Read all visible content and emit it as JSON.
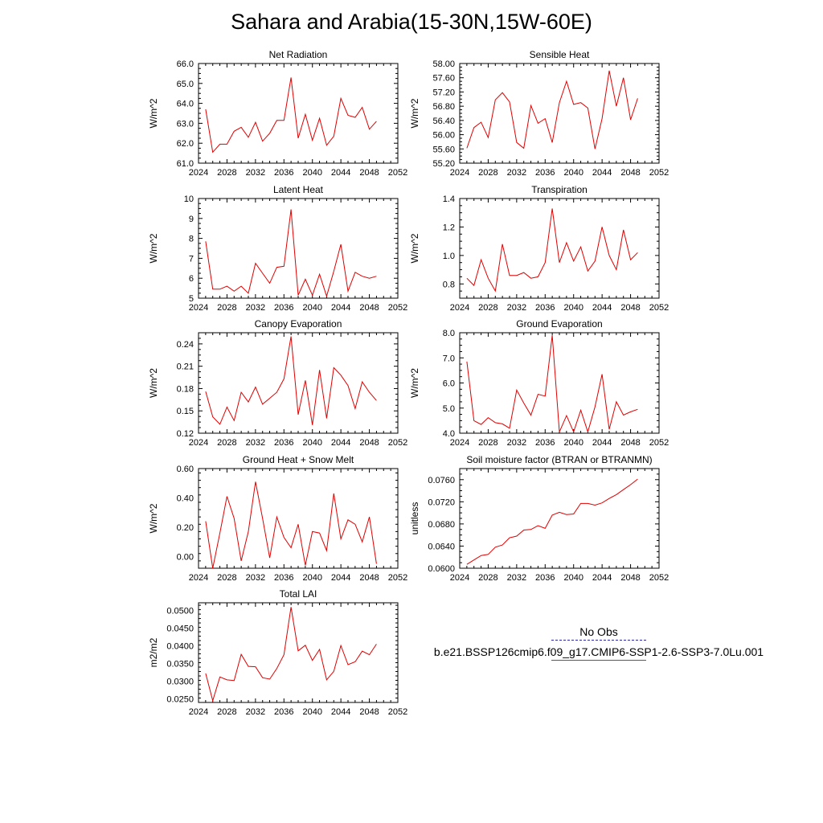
{
  "title": "Sahara and Arabia(15-30N,15W-60E)",
  "colors": {
    "model_line": "#e00000",
    "obs_line": "#2a2aa8"
  },
  "legend": {
    "obs_label": "No Obs",
    "model_label": "b.e21.BSSP126cmip6.f09_g17.CMIP6-SSP1-2.6-SSP3-7.0Lu.001"
  },
  "chart_data": [
    {
      "type": "line",
      "title": "Net Radiation",
      "ylabel": "W/m^2",
      "xlim": [
        2024,
        2052
      ],
      "ylim": [
        61.0,
        66.0
      ],
      "xticks": [
        2024,
        2028,
        2032,
        2036,
        2040,
        2044,
        2048,
        2052
      ],
      "yticks": [
        "61.0",
        "62.0",
        "63.0",
        "64.0",
        "65.0",
        "66.0"
      ],
      "x": [
        2025,
        2026,
        2027,
        2028,
        2029,
        2030,
        2031,
        2032,
        2033,
        2034,
        2035,
        2036,
        2037,
        2038,
        2039,
        2040,
        2041,
        2042,
        2043,
        2044,
        2045,
        2046,
        2047,
        2048,
        2049
      ],
      "series": [
        {
          "values": [
            63.7,
            61.55,
            61.95,
            61.95,
            62.6,
            62.8,
            62.3,
            63.05,
            62.1,
            62.5,
            63.15,
            63.15,
            65.3,
            62.25,
            63.45,
            62.15,
            63.25,
            61.9,
            62.35,
            64.25,
            63.4,
            63.3,
            63.8,
            62.7,
            63.1
          ]
        }
      ]
    },
    {
      "type": "line",
      "title": "Sensible Heat",
      "ylabel": "W/m^2",
      "xlim": [
        2024,
        2052
      ],
      "ylim": [
        55.2,
        58.0
      ],
      "xticks": [
        2024,
        2028,
        2032,
        2036,
        2040,
        2044,
        2048,
        2052
      ],
      "yticks": [
        "55.20",
        "55.60",
        "56.00",
        "56.40",
        "56.80",
        "57.20",
        "57.60",
        "58.00"
      ],
      "x": [
        2025,
        2026,
        2027,
        2028,
        2029,
        2030,
        2031,
        2032,
        2033,
        2034,
        2035,
        2036,
        2037,
        2038,
        2039,
        2040,
        2041,
        2042,
        2043,
        2044,
        2045,
        2046,
        2047,
        2048,
        2049
      ],
      "series": [
        {
          "values": [
            55.62,
            56.2,
            56.35,
            55.92,
            56.98,
            57.18,
            56.92,
            55.78,
            55.62,
            56.82,
            56.32,
            56.45,
            55.78,
            56.9,
            57.5,
            56.85,
            56.9,
            56.75,
            55.6,
            56.45,
            57.8,
            56.8,
            57.6,
            56.42,
            57.02
          ]
        }
      ]
    },
    {
      "type": "line",
      "title": "Latent Heat",
      "ylabel": "W/m^2",
      "xlim": [
        2024,
        2052
      ],
      "ylim": [
        5,
        10
      ],
      "xticks": [
        2024,
        2028,
        2032,
        2036,
        2040,
        2044,
        2048,
        2052
      ],
      "yticks": [
        "5",
        "6",
        "7",
        "8",
        "9",
        "10"
      ],
      "x": [
        2025,
        2026,
        2027,
        2028,
        2029,
        2030,
        2031,
        2032,
        2033,
        2034,
        2035,
        2036,
        2037,
        2038,
        2039,
        2040,
        2041,
        2042,
        2043,
        2044,
        2045,
        2046,
        2047,
        2048,
        2049
      ],
      "series": [
        {
          "values": [
            7.85,
            5.45,
            5.45,
            5.6,
            5.35,
            5.6,
            5.25,
            6.75,
            6.25,
            5.75,
            6.55,
            6.6,
            9.45,
            5.15,
            5.95,
            5.15,
            6.2,
            5.1,
            6.35,
            7.7,
            5.35,
            6.3,
            6.1,
            6.0,
            6.1
          ]
        }
      ]
    },
    {
      "type": "line",
      "title": "Transpiration",
      "ylabel": "W/m^2",
      "xlim": [
        2024,
        2052
      ],
      "ylim": [
        0.7,
        1.4
      ],
      "xticks": [
        2024,
        2028,
        2032,
        2036,
        2040,
        2044,
        2048,
        2052
      ],
      "yticks": [
        "0.8",
        "1.0",
        "1.2",
        "1.4"
      ],
      "x": [
        2025,
        2026,
        2027,
        2028,
        2029,
        2030,
        2031,
        2032,
        2033,
        2034,
        2035,
        2036,
        2037,
        2038,
        2039,
        2040,
        2041,
        2042,
        2043,
        2044,
        2045,
        2046,
        2047,
        2048,
        2049
      ],
      "series": [
        {
          "values": [
            0.84,
            0.79,
            0.97,
            0.84,
            0.75,
            1.08,
            0.86,
            0.86,
            0.88,
            0.84,
            0.85,
            0.95,
            1.33,
            0.95,
            1.09,
            0.96,
            1.06,
            0.89,
            0.96,
            1.2,
            1.0,
            0.9,
            1.18,
            0.97,
            1.02
          ]
        }
      ]
    },
    {
      "type": "line",
      "title": "Canopy Evaporation",
      "ylabel": "W/m^2",
      "xlim": [
        2024,
        2052
      ],
      "ylim": [
        0.12,
        0.255
      ],
      "xticks": [
        2024,
        2028,
        2032,
        2036,
        2040,
        2044,
        2048,
        2052
      ],
      "yticks": [
        "0.12",
        "0.15",
        "0.18",
        "0.21",
        "0.24"
      ],
      "x": [
        2025,
        2026,
        2027,
        2028,
        2029,
        2030,
        2031,
        2032,
        2033,
        2034,
        2035,
        2036,
        2037,
        2038,
        2039,
        2040,
        2041,
        2042,
        2043,
        2044,
        2045,
        2046,
        2047,
        2048,
        2049
      ],
      "series": [
        {
          "values": [
            0.176,
            0.142,
            0.132,
            0.155,
            0.137,
            0.175,
            0.162,
            0.182,
            0.159,
            0.167,
            0.175,
            0.193,
            0.25,
            0.145,
            0.191,
            0.131,
            0.205,
            0.14,
            0.208,
            0.198,
            0.184,
            0.153,
            0.189,
            0.175,
            0.164
          ]
        }
      ]
    },
    {
      "type": "line",
      "title": "Ground Evaporation",
      "ylabel": "W/m^2",
      "xlim": [
        2024,
        2052
      ],
      "ylim": [
        4.0,
        8.0
      ],
      "xticks": [
        2024,
        2028,
        2032,
        2036,
        2040,
        2044,
        2048,
        2052
      ],
      "yticks": [
        "4.0",
        "5.0",
        "6.0",
        "7.0",
        "8.0"
      ],
      "x": [
        2025,
        2026,
        2027,
        2028,
        2029,
        2030,
        2031,
        2032,
        2033,
        2034,
        2035,
        2036,
        2037,
        2038,
        2039,
        2040,
        2041,
        2042,
        2043,
        2044,
        2045,
        2046,
        2047,
        2048,
        2049
      ],
      "series": [
        {
          "values": [
            6.85,
            4.5,
            4.35,
            4.62,
            4.42,
            4.37,
            4.2,
            5.72,
            5.2,
            4.72,
            5.55,
            5.48,
            7.9,
            4.05,
            4.7,
            4.05,
            4.92,
            4.05,
            5.05,
            6.35,
            4.15,
            5.25,
            4.72,
            4.85,
            4.95
          ]
        }
      ]
    },
    {
      "type": "line",
      "title": "Ground Heat + Snow Melt",
      "ylabel": "W/m^2",
      "xlim": [
        2024,
        2052
      ],
      "ylim": [
        -0.08,
        0.6
      ],
      "xticks": [
        2024,
        2028,
        2032,
        2036,
        2040,
        2044,
        2048,
        2052
      ],
      "yticks": [
        "0.00",
        "0.20",
        "0.40",
        "0.60"
      ],
      "x": [
        2025,
        2026,
        2027,
        2028,
        2029,
        2030,
        2031,
        2032,
        2033,
        2034,
        2035,
        2036,
        2037,
        2038,
        2039,
        2040,
        2041,
        2042,
        2043,
        2044,
        2045,
        2046,
        2047,
        2048,
        2049
      ],
      "series": [
        {
          "values": [
            0.24,
            -0.08,
            0.16,
            0.41,
            0.26,
            -0.03,
            0.17,
            0.51,
            0.26,
            -0.01,
            0.27,
            0.13,
            0.06,
            0.22,
            -0.06,
            0.17,
            0.16,
            0.04,
            0.43,
            0.12,
            0.25,
            0.22,
            0.1,
            0.27,
            -0.05
          ]
        }
      ]
    },
    {
      "type": "line",
      "title": "Soil moisture factor (BTRAN or BTRANMN)",
      "ylabel": "unitless",
      "xlim": [
        2024,
        2052
      ],
      "ylim": [
        0.06,
        0.078
      ],
      "xticks": [
        2024,
        2028,
        2032,
        2036,
        2040,
        2044,
        2048,
        2052
      ],
      "yticks": [
        "0.0600",
        "0.0640",
        "0.0680",
        "0.0720",
        "0.0760"
      ],
      "x": [
        2025,
        2026,
        2027,
        2028,
        2029,
        2030,
        2031,
        2032,
        2033,
        2034,
        2035,
        2036,
        2037,
        2038,
        2039,
        2040,
        2041,
        2042,
        2043,
        2044,
        2045,
        2046,
        2047,
        2048,
        2049
      ],
      "series": [
        {
          "values": [
            0.0607,
            0.0615,
            0.0623,
            0.0625,
            0.0638,
            0.0642,
            0.0655,
            0.0658,
            0.0669,
            0.067,
            0.0677,
            0.0672,
            0.0696,
            0.0701,
            0.0697,
            0.0698,
            0.0717,
            0.0717,
            0.0714,
            0.0718,
            0.0726,
            0.0733,
            0.0742,
            0.0751,
            0.0761
          ]
        }
      ]
    },
    {
      "type": "line",
      "title": "Total LAI",
      "ylabel": "m2/m2",
      "xlim": [
        2024,
        2052
      ],
      "ylim": [
        0.024,
        0.0522
      ],
      "xticks": [
        2024,
        2028,
        2032,
        2036,
        2040,
        2044,
        2048,
        2052
      ],
      "yticks": [
        "0.0250",
        "0.0300",
        "0.0350",
        "0.0400",
        "0.0450",
        "0.0500"
      ],
      "x": [
        2025,
        2026,
        2027,
        2028,
        2029,
        2030,
        2031,
        2032,
        2033,
        2034,
        2035,
        2036,
        2037,
        2038,
        2039,
        2040,
        2041,
        2042,
        2043,
        2044,
        2045,
        2046,
        2047,
        2048,
        2049
      ],
      "series": [
        {
          "values": [
            0.0322,
            0.0245,
            0.0312,
            0.0304,
            0.0302,
            0.0376,
            0.0342,
            0.0341,
            0.031,
            0.0306,
            0.0336,
            0.0375,
            0.051,
            0.0386,
            0.0402,
            0.0359,
            0.039,
            0.0304,
            0.0328,
            0.0401,
            0.0347,
            0.0355,
            0.0385,
            0.0375,
            0.0405
          ]
        }
      ]
    }
  ]
}
